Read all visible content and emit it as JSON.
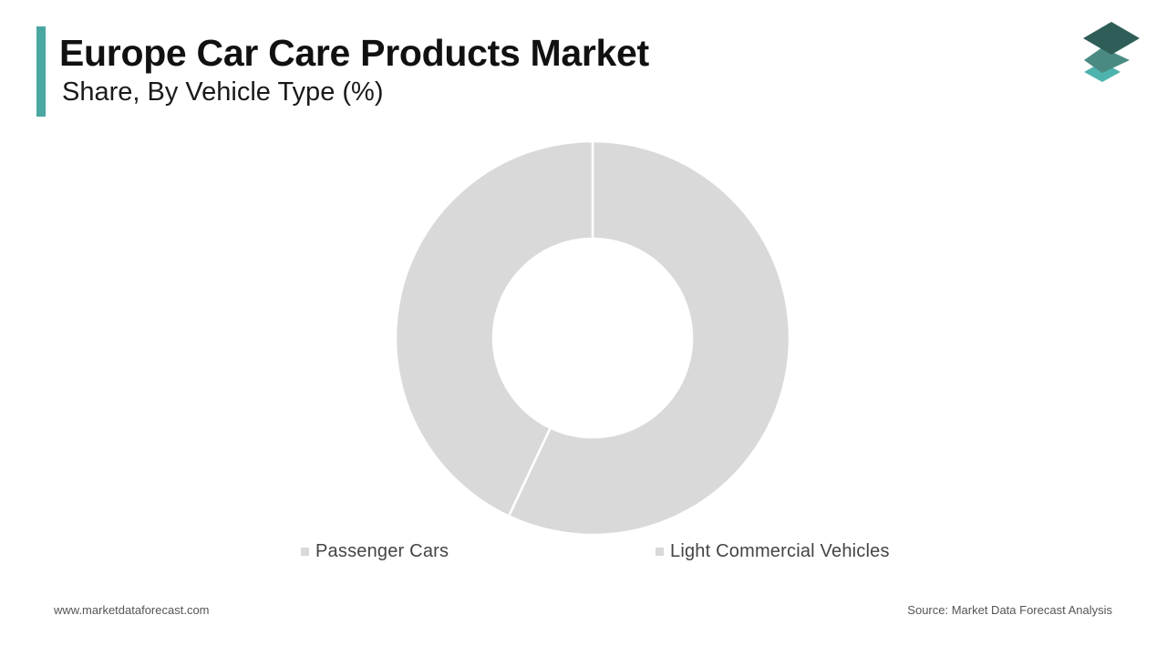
{
  "header": {
    "title": "Europe Car Care Products Market",
    "subtitle": "Share, By Vehicle Type (%)"
  },
  "logo": {
    "icon": "layered-diamonds-logo-icon",
    "colors": [
      "#2e5e57",
      "#4a8a82",
      "#4fb3ad"
    ]
  },
  "chart_data": {
    "type": "pie",
    "variant": "donut",
    "title": "Europe Car Care Products Market",
    "subtitle": "Share, By Vehicle Type (%)",
    "categories": [
      "Passenger Cars",
      "Light Commercial Vehicles"
    ],
    "values": [
      57,
      43
    ],
    "unit": "%",
    "colors": [
      "#d9d9d9",
      "#d9d9d9"
    ],
    "legend_position": "bottom",
    "start_angle": "12 o'clock",
    "direction": "clockwise"
  },
  "legend": {
    "items": [
      {
        "label": "Passenger Cars",
        "color": "#d9d9d9"
      },
      {
        "label": "Light Commercial Vehicles",
        "color": "#d9d9d9"
      }
    ]
  },
  "footer": {
    "website": "www.marketdataforecast.com",
    "source": "Source: Market Data Forecast Analysis"
  }
}
